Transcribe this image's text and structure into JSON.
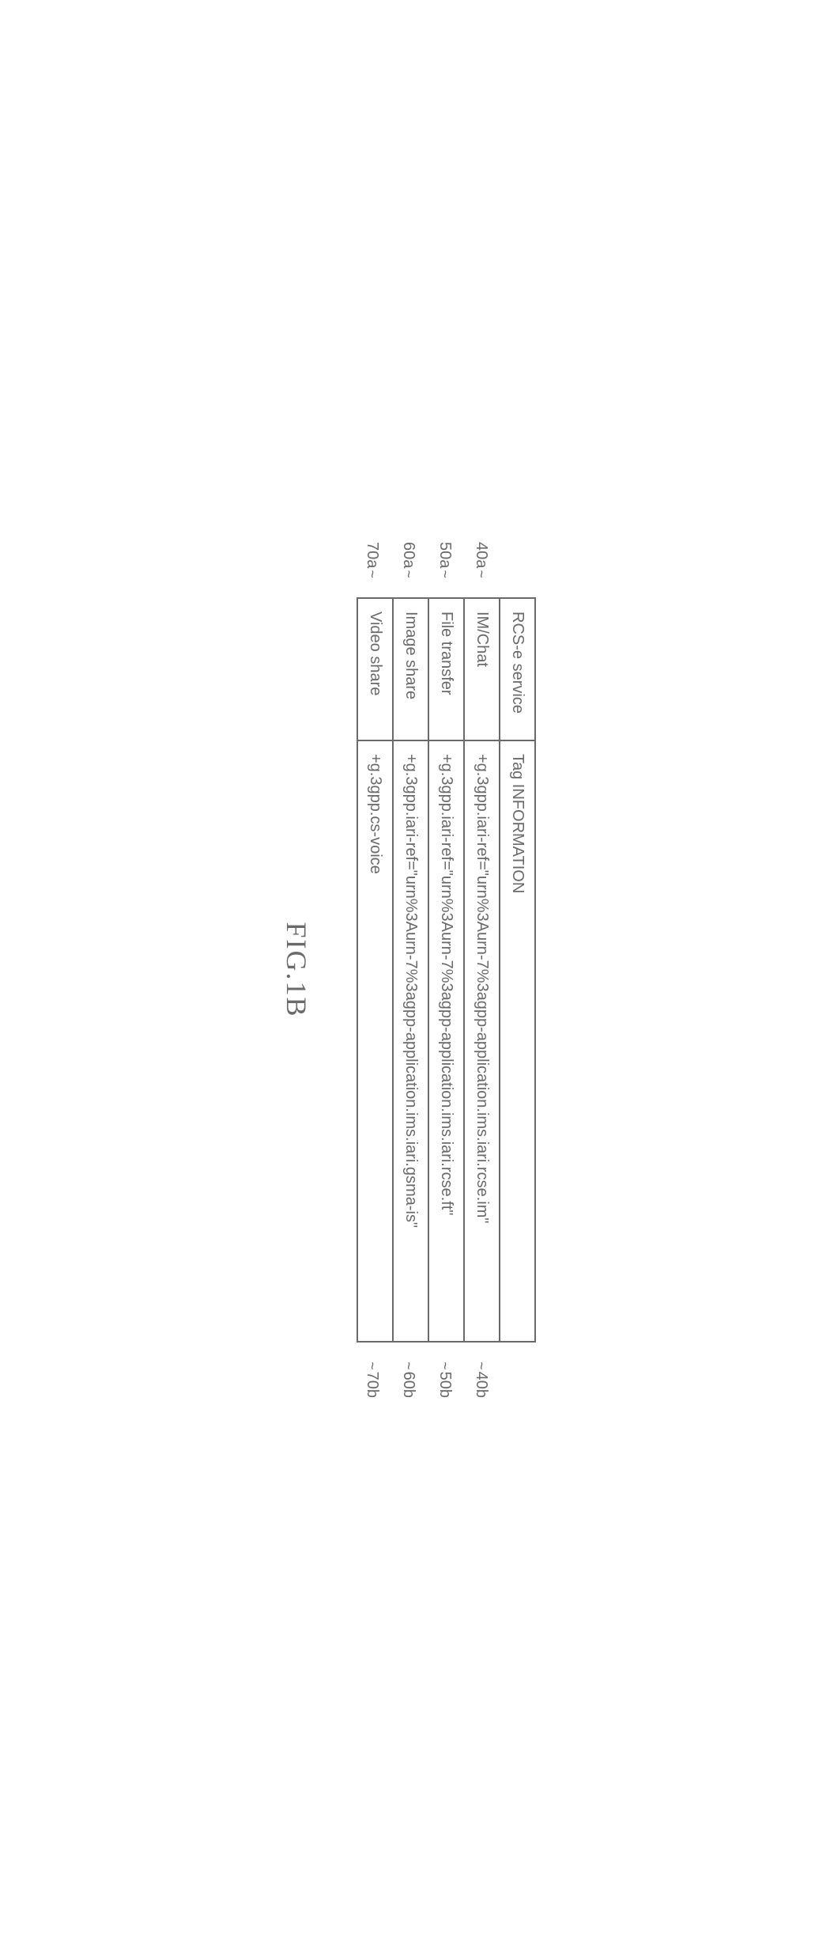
{
  "table": {
    "headers": {
      "service": "RCS-e service",
      "tag": "Tag INFORMATION"
    },
    "rows": [
      {
        "service": "IM/Chat",
        "tag": "+g.3gpp.iari-ref=\"urn%3Aurn-7%3agpp-application.ims.iari.rcse.im\"",
        "left_ref": "40a",
        "right_ref": "40b"
      },
      {
        "service": "File transfer",
        "tag": "+g.3gpp.iari-ref=\"urn%3Aurn-7%3agpp-application.ims.iari.rcse.ft\"",
        "left_ref": "50a",
        "right_ref": "50b"
      },
      {
        "service": "Image share",
        "tag": "+g.3gpp.iari-ref=\"urn%3Aurn-7%3agpp-application.ims.iari.gsma-is\"",
        "left_ref": "60a",
        "right_ref": "60b"
      },
      {
        "service": "Video share",
        "tag": "+g.3gpp.cs-voice",
        "left_ref": "70a",
        "right_ref": "70b"
      }
    ]
  },
  "caption": "FIG.1B",
  "styling": {
    "border_color": "#6a6a6a",
    "text_color": "#6a6a6a",
    "background_color": "#ffffff",
    "border_width": 2,
    "cell_fontsize": 20,
    "caption_fontsize": 36,
    "col_service_width": 180,
    "col_tag_width": 760
  }
}
